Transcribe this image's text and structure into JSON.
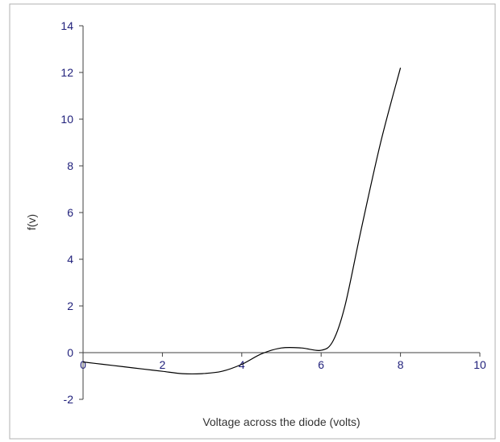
{
  "chart_data": {
    "type": "line",
    "title": "",
    "xlabel": "Voltage across the diode (volts)",
    "ylabel": "f(v)",
    "xlim": [
      0,
      10
    ],
    "ylim": [
      -2,
      14
    ],
    "xticks": [
      0,
      2,
      4,
      6,
      8,
      10
    ],
    "yticks": [
      -2,
      0,
      2,
      4,
      6,
      8,
      10,
      12,
      14
    ],
    "grid": false,
    "legend": "none",
    "colors": {
      "line": "#000000",
      "axis": "#404040",
      "tick_label": "#1f1f7a",
      "frame": "#b0b0b0"
    },
    "series": [
      {
        "x": [
          0,
          0.5,
          1.0,
          1.5,
          2.0,
          2.5,
          3.0,
          3.5,
          4.0,
          4.5,
          5.0,
          5.5,
          6.0,
          6.3,
          6.6,
          7.0,
          7.5,
          8.0
        ],
        "values": [
          -0.4,
          -0.5,
          -0.6,
          -0.7,
          -0.8,
          -0.9,
          -0.9,
          -0.8,
          -0.5,
          -0.05,
          0.2,
          0.2,
          0.1,
          0.5,
          2.0,
          5.2,
          9.0,
          12.2
        ]
      }
    ]
  }
}
